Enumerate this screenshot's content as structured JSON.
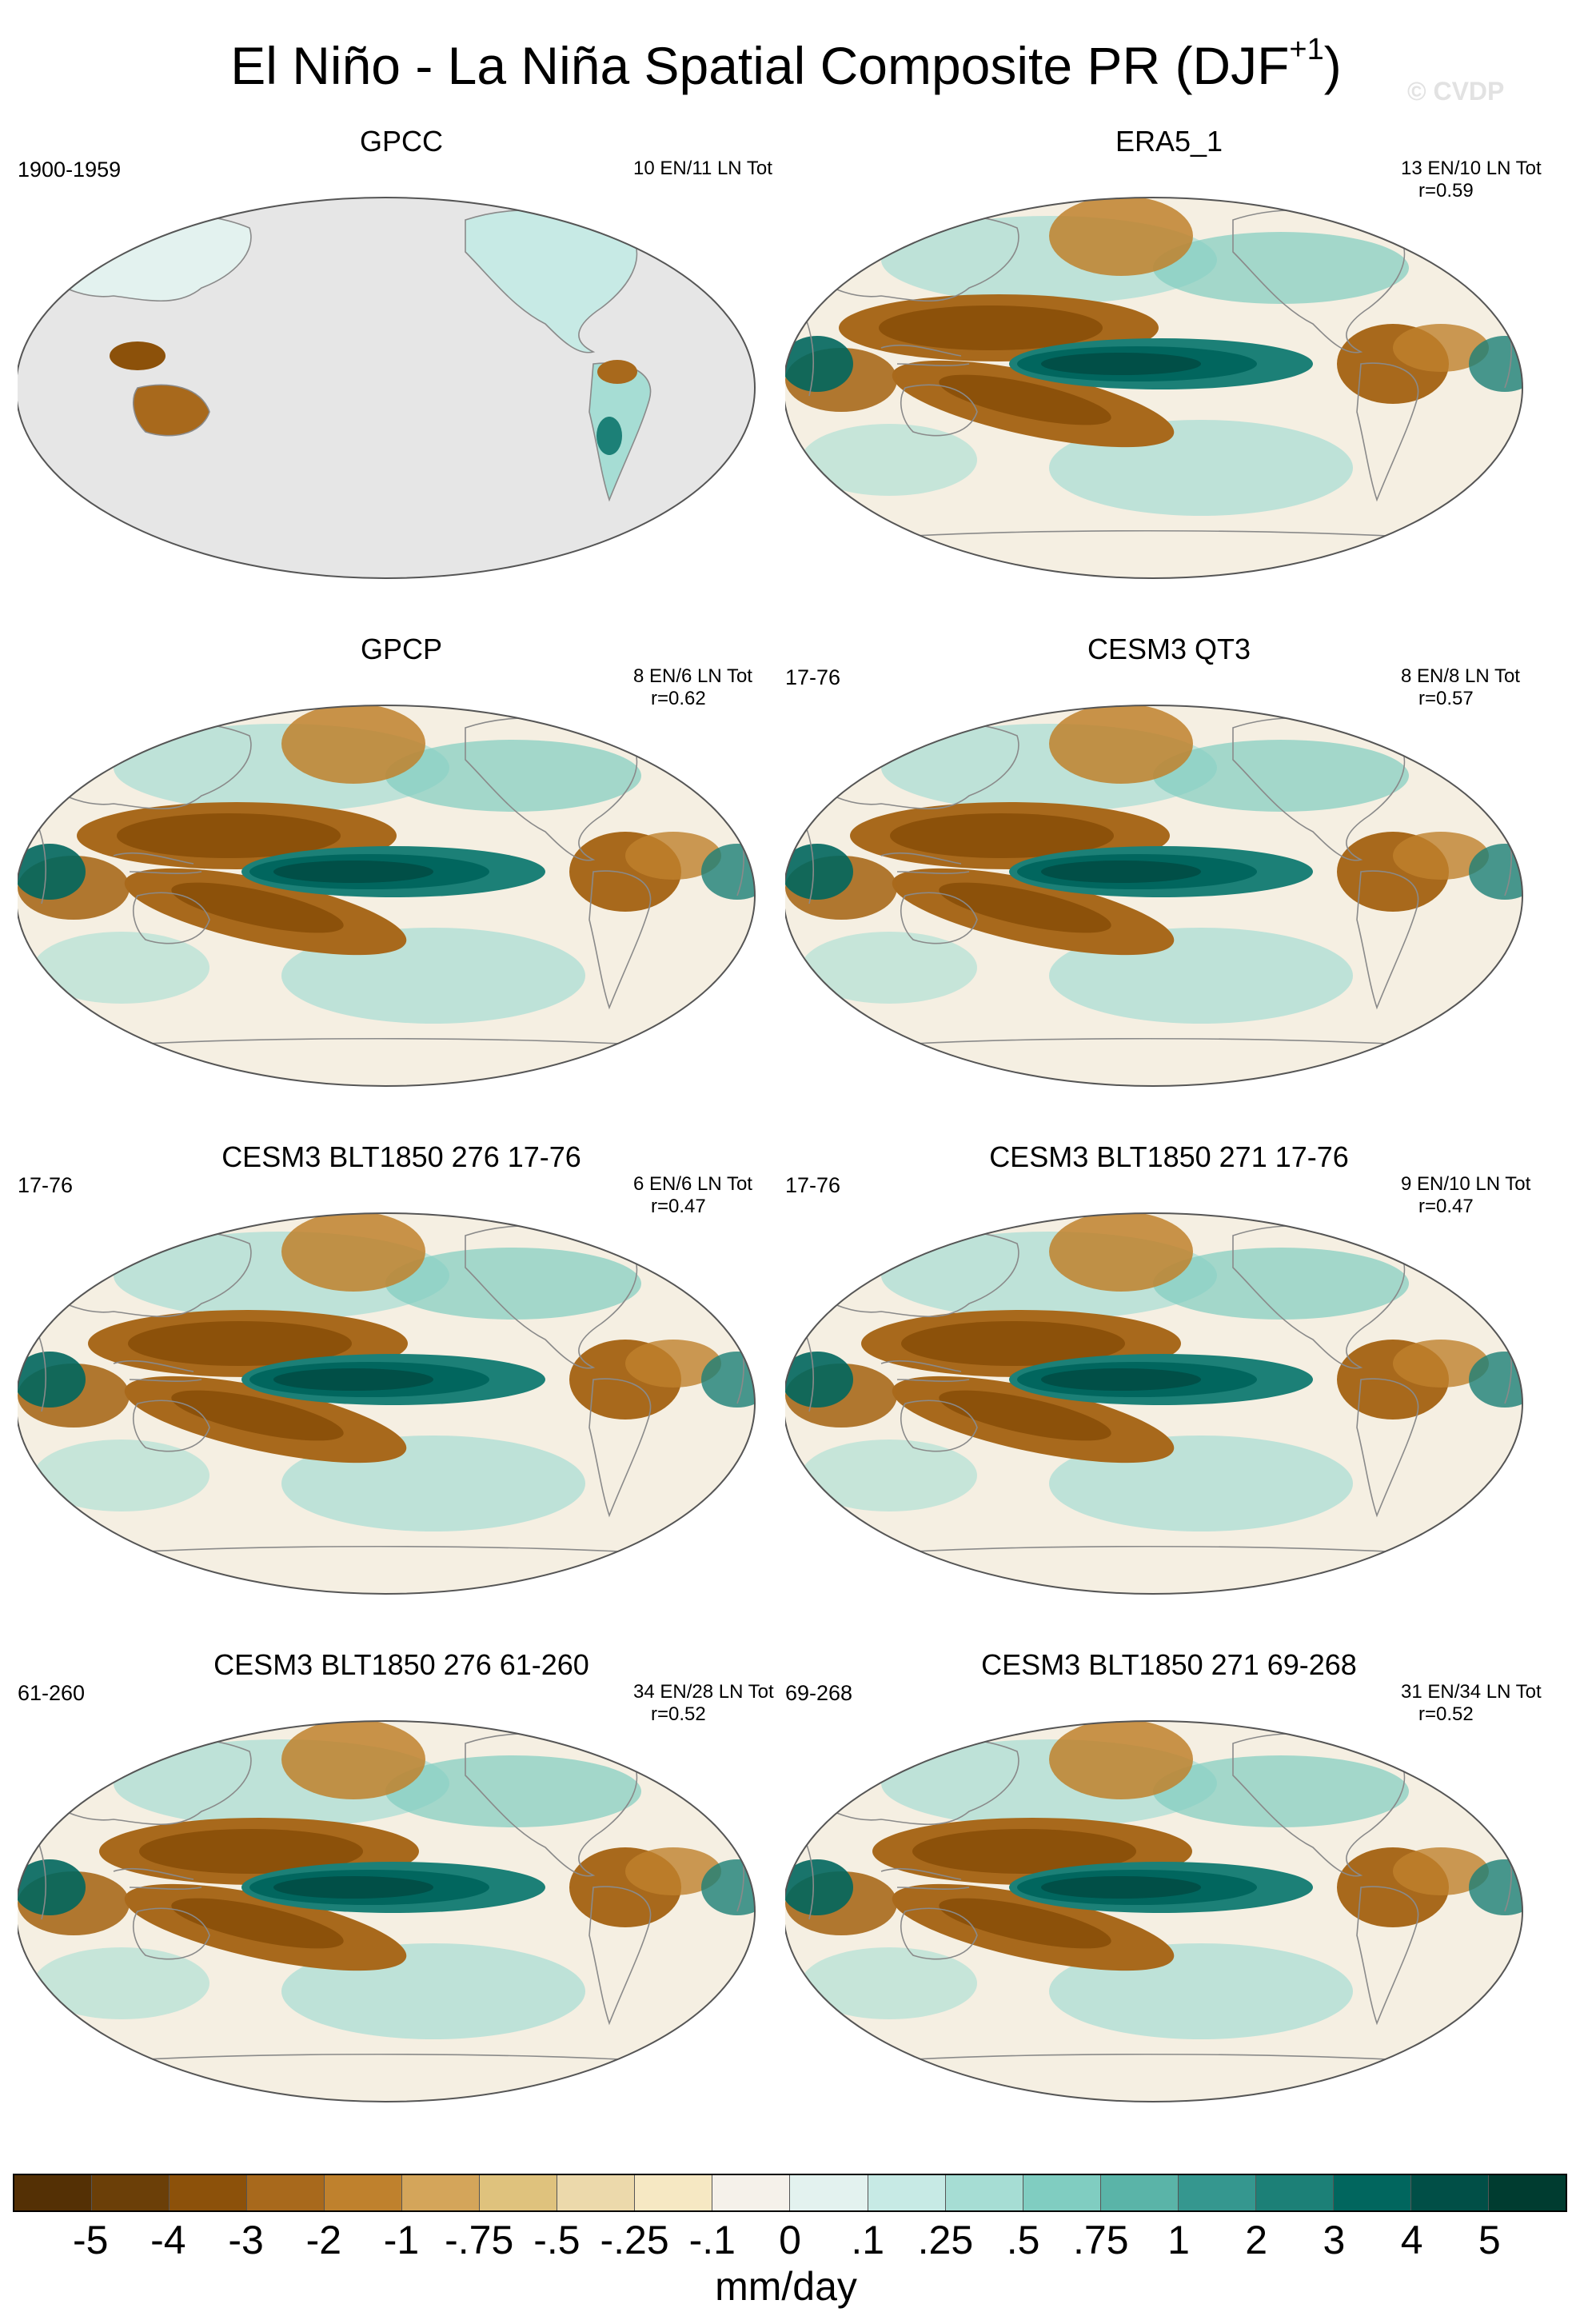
{
  "title": {
    "main": "El Niño - La Niña Spatial Composite PR (DJF",
    "sup": "+1",
    "close": ")"
  },
  "watermark": "© CVDP",
  "panels": [
    {
      "title": "GPCC",
      "years": "1900-1959",
      "counts": "10 EN/11 LN Tot",
      "r": "",
      "no_ocean": true
    },
    {
      "title": "ERA5_1",
      "years": "",
      "counts": "13 EN/10 LN Tot",
      "r": "r=0.59",
      "no_ocean": false
    },
    {
      "title": "GPCP",
      "years": "",
      "counts": "8 EN/6 LN Tot",
      "r": "r=0.62",
      "no_ocean": false
    },
    {
      "title": "CESM3 QT3",
      "years": "17-76",
      "counts": "8 EN/8 LN Tot",
      "r": "r=0.57",
      "no_ocean": false
    },
    {
      "title": "CESM3 BLT1850 276 17-76",
      "years": "17-76",
      "counts": "6 EN/6 LN Tot",
      "r": "r=0.47",
      "no_ocean": false
    },
    {
      "title": "CESM3 BLT1850 271 17-76",
      "years": "17-76",
      "counts": "9 EN/10 LN Tot",
      "r": "r=0.47",
      "no_ocean": false
    },
    {
      "title": "CESM3 BLT1850 276 61-260",
      "years": "61-260",
      "counts": "34 EN/28 LN Tot",
      "r": "r=0.52",
      "no_ocean": false
    },
    {
      "title": "CESM3 BLT1850 271 69-268",
      "years": "69-268",
      "counts": "31 EN/34 LN Tot",
      "r": "r=0.52",
      "no_ocean": false
    }
  ],
  "colorbar": {
    "colors": [
      "#543005",
      "#6b3f08",
      "#8c510a",
      "#a8691c",
      "#bf812d",
      "#d4a55a",
      "#dfc27d",
      "#ecd9ab",
      "#f6e8c3",
      "#f5f1ea",
      "#e3f2ef",
      "#c7eae5",
      "#a6ddd4",
      "#80cdc1",
      "#5ab4a8",
      "#35978f",
      "#1c8077",
      "#01665e",
      "#014f47",
      "#003c30"
    ],
    "labels": [
      "-5",
      "-4",
      "-3",
      "-2",
      "-1",
      "-.75",
      "-.5",
      "-.25",
      "-.1",
      "0",
      ".1",
      ".25",
      ".5",
      ".75",
      "1",
      "2",
      "3",
      "4",
      "5"
    ],
    "units": "mm/day"
  }
}
